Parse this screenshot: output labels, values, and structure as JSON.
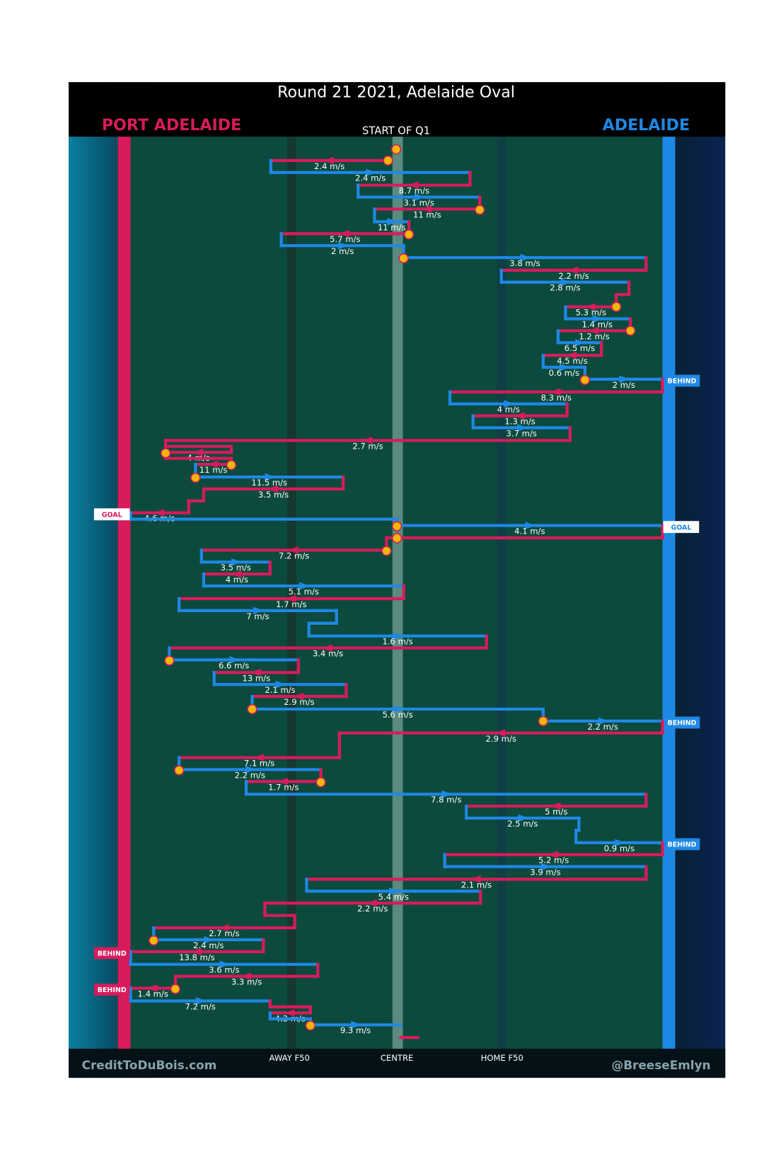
{
  "header": {
    "title": "Round 21 2021, Adelaide Oval",
    "left_team": "PORT ADELAIDE",
    "right_team": "ADELAIDE",
    "start": "START OF Q1"
  },
  "rows": [
    "2.4 m/s",
    "2.4 m/s",
    "8.7 m/s",
    "3.1 m/s",
    "11 m/s",
    "11 m/s",
    "5.7 m/s",
    "2 m/s",
    "3.8 m/s",
    "2.2 m/s",
    "2.8 m/s",
    "5.3 m/s",
    "1.4 m/s",
    "1.2 m/s",
    "6.5 m/s",
    "4.5 m/s",
    "0.6 m/s",
    "2 m/s",
    "8.3 m/s",
    "4 m/s",
    "1.3 m/s",
    "3.7 m/s",
    "2.7 m/s",
    "4 m/s",
    "11 m/s",
    "11.5 m/s",
    "3.5 m/s",
    "4.6 m/s",
    "4.1 m/s",
    "7.2 m/s",
    "3.5 m/s",
    "4 m/s",
    "5.1 m/s",
    "1.7 m/s",
    "7 m/s",
    "1.6 m/s",
    "3.4 m/s",
    "6.6 m/s",
    "13 m/s",
    "2.1 m/s",
    "2.9 m/s",
    "5.6 m/s",
    "2.2 m/s",
    "2.9 m/s",
    "7.1 m/s",
    "2.2 m/s",
    "1.7 m/s",
    "7.8 m/s",
    "5 m/s",
    "2.5 m/s",
    "0.9 m/s",
    "5.2 m/s",
    "3.9 m/s",
    "2.1 m/s",
    "5.4 m/s",
    "2.2 m/s",
    "2.7 m/s",
    "2.4 m/s",
    "13.8 m/s",
    "3.6 m/s",
    "3.3 m/s",
    "1.4 m/s",
    "7.2 m/s",
    "4.3 m/s",
    "9.3 m/s"
  ],
  "markers": [
    "BEHIND",
    "GOAL",
    "GOAL",
    "BEHIND",
    "BEHIND",
    "BEHIND",
    "BEHIND"
  ],
  "axis": [
    "AWAY F50",
    "CENTRE",
    "HOME F50"
  ],
  "footer": {
    "left": "CreditToDuBois.com",
    "right": "@BreeseEmlyn"
  }
}
